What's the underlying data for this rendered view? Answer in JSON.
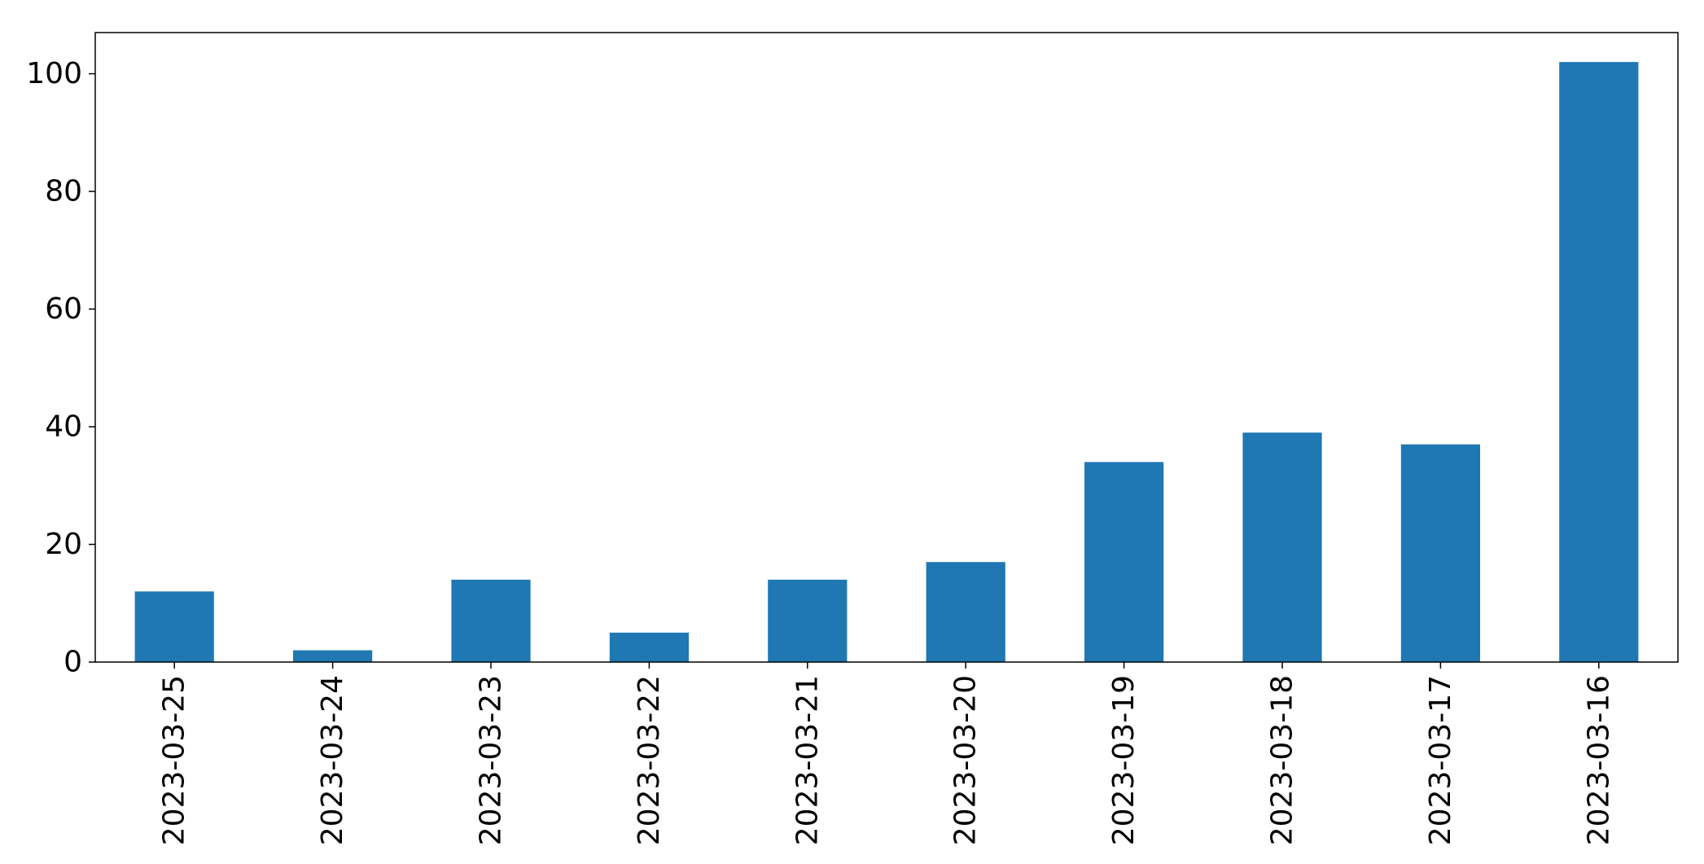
{
  "chart_data": {
    "type": "bar",
    "title": "",
    "xlabel": "",
    "ylabel": "",
    "categories": [
      "2023-03-25",
      "2023-03-24",
      "2023-03-23",
      "2023-03-22",
      "2023-03-21",
      "2023-03-20",
      "2023-03-19",
      "2023-03-18",
      "2023-03-17",
      "2023-03-16"
    ],
    "values": [
      12,
      2,
      14,
      5,
      14,
      17,
      34,
      39,
      37,
      102
    ],
    "ylim": [
      0,
      107
    ],
    "yticks": [
      0,
      20,
      40,
      60,
      80,
      100
    ],
    "bar_color": "#1f77b4",
    "grid": false,
    "legend": "none",
    "x_tick_rotation": "vertical"
  }
}
